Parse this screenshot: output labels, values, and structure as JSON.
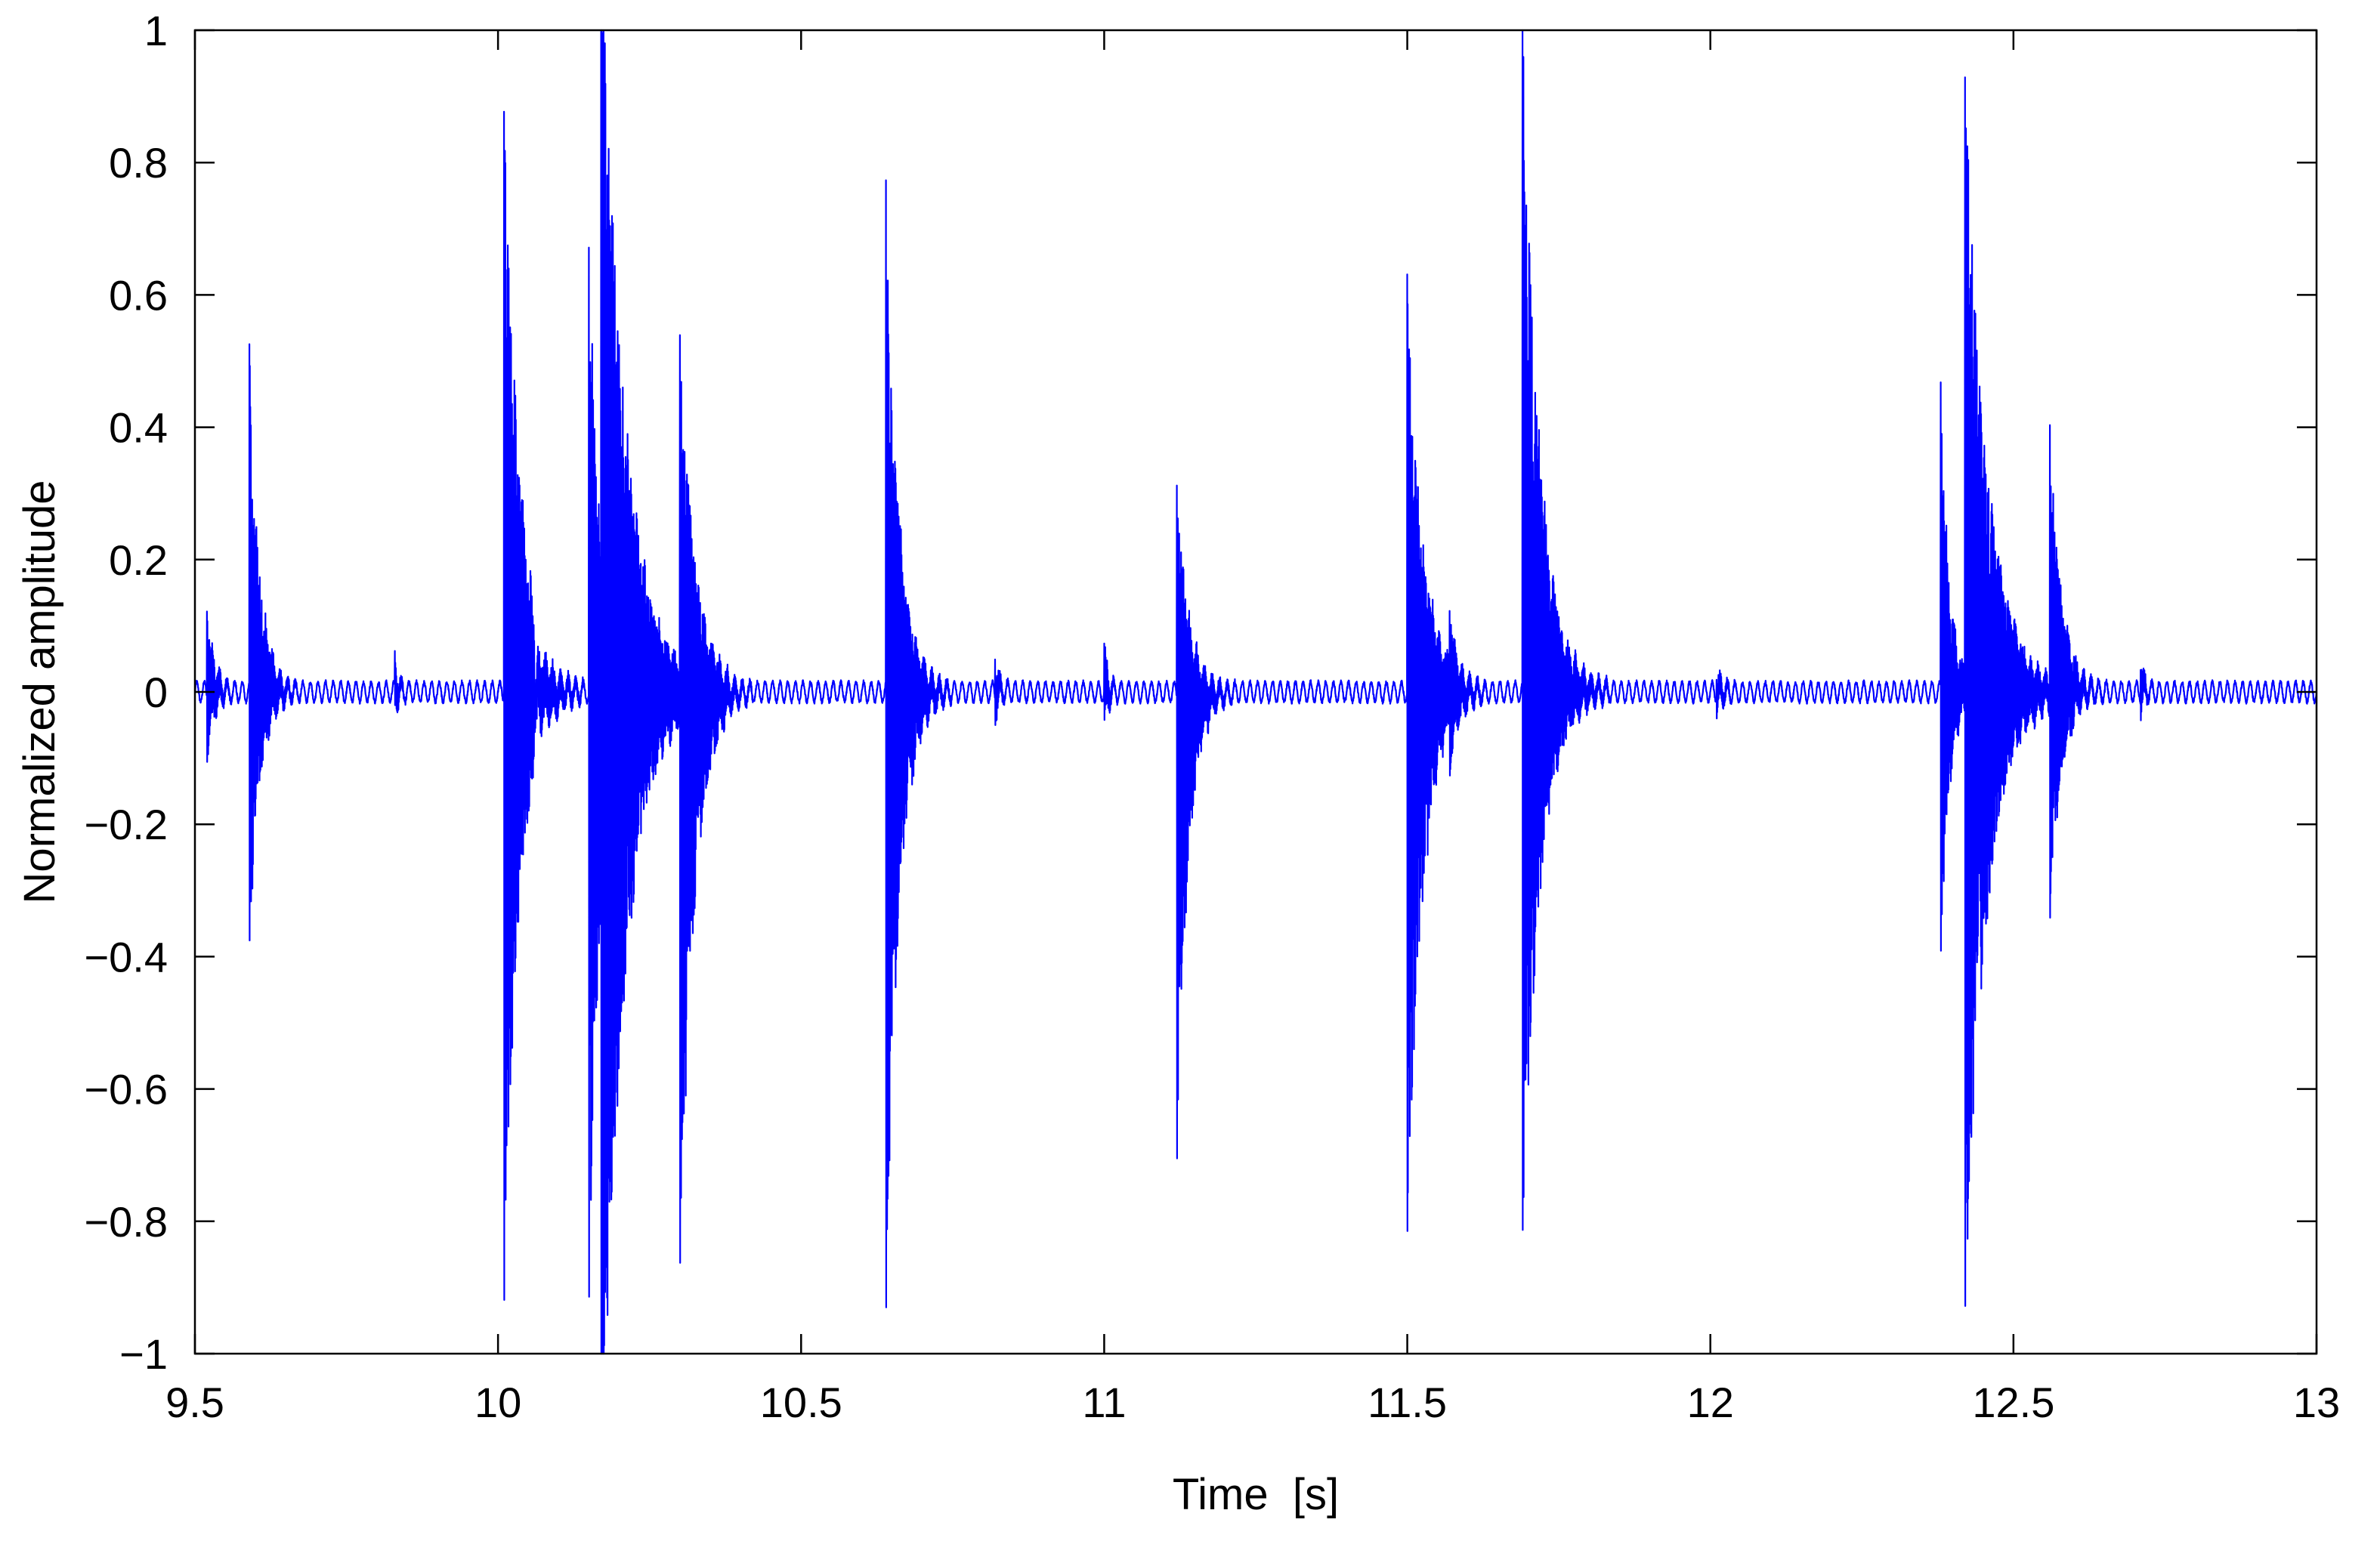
{
  "chart_data": {
    "type": "line",
    "title": "",
    "xlabel": "Time  [s]",
    "ylabel": "Normalized amplitude",
    "xlim": [
      9.5,
      13
    ],
    "ylim": [
      -1,
      1
    ],
    "x_ticks": [
      9.5,
      10,
      10.5,
      11,
      11.5,
      12,
      12.5,
      13
    ],
    "x_tick_labels": [
      "9.5",
      "10",
      "10.5",
      "11",
      "11.5",
      "12",
      "12.5",
      "13"
    ],
    "y_ticks": [
      1,
      0.8,
      0.6,
      0.4,
      0.2,
      0,
      -0.2,
      -0.4,
      -0.6,
      -0.8,
      -1
    ],
    "y_tick_labels": [
      "1",
      "0.8",
      "0.6",
      "0.4",
      "0.2",
      "0",
      "−0.2",
      "−0.4",
      "−0.6",
      "−0.8",
      "−1"
    ],
    "grid": false,
    "legend": "none",
    "line_color": "#0000ff",
    "baseline_oscillation": {
      "amplitude": 0.015,
      "period_s": 0.0125
    },
    "events": [
      {
        "t": 9.52,
        "pos": 0.13,
        "neg": -0.1,
        "decay_s": 0.01
      },
      {
        "t": 9.59,
        "pos": 0.51,
        "neg": -0.4,
        "decay_s": 0.014
      },
      {
        "t": 9.83,
        "pos": 0.05,
        "neg": -0.03,
        "decay_s": 0.006
      },
      {
        "t": 10.01,
        "pos": 0.89,
        "neg": -0.92,
        "decay_s": 0.022
      },
      {
        "t": 10.06,
        "pos": 0.12,
        "neg": -0.1,
        "decay_s": 0.01
      },
      {
        "t": 10.15,
        "pos": 0.67,
        "neg": -0.93,
        "decay_s": 0.018
      },
      {
        "t": 10.17,
        "pos": 1.0,
        "neg": -1.0,
        "decay_s": 0.035
      },
      {
        "t": 10.3,
        "pos": 0.51,
        "neg": -0.85,
        "decay_s": 0.02
      },
      {
        "t": 10.64,
        "pos": 0.76,
        "neg": -0.96,
        "decay_s": 0.018
      },
      {
        "t": 10.82,
        "pos": 0.06,
        "neg": -0.04,
        "decay_s": 0.006
      },
      {
        "t": 11.0,
        "pos": 0.07,
        "neg": -0.05,
        "decay_s": 0.006
      },
      {
        "t": 11.12,
        "pos": 0.32,
        "neg": -0.71,
        "decay_s": 0.016
      },
      {
        "t": 11.5,
        "pos": 0.63,
        "neg": -0.83,
        "decay_s": 0.022
      },
      {
        "t": 11.57,
        "pos": 0.1,
        "neg": -0.07,
        "decay_s": 0.008
      },
      {
        "t": 11.69,
        "pos": 1.0,
        "neg": -0.84,
        "decay_s": 0.024
      },
      {
        "t": 12.01,
        "pos": 0.03,
        "neg": -0.03,
        "decay_s": 0.01
      },
      {
        "t": 12.38,
        "pos": 0.46,
        "neg": -0.41,
        "decay_s": 0.012
      },
      {
        "t": 12.42,
        "pos": 0.96,
        "neg": -0.95,
        "decay_s": 0.03
      },
      {
        "t": 12.56,
        "pos": 0.4,
        "neg": -0.32,
        "decay_s": 0.016
      },
      {
        "t": 12.71,
        "pos": 0.05,
        "neg": -0.03,
        "decay_s": 0.006
      }
    ]
  }
}
